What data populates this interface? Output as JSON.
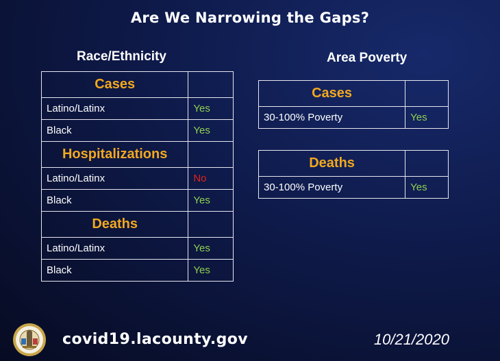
{
  "title": "Are We Narrowing the Gaps?",
  "race": {
    "heading": "Race/Ethnicity",
    "sections": [
      {
        "label": "Cases",
        "rows": [
          {
            "group": "Latino/Latinx",
            "answer": "Yes"
          },
          {
            "group": "Black",
            "answer": "Yes"
          }
        ]
      },
      {
        "label": "Hospitalizations",
        "rows": [
          {
            "group": "Latino/Latinx",
            "answer": "No"
          },
          {
            "group": "Black",
            "answer": "Yes"
          }
        ]
      },
      {
        "label": "Deaths",
        "rows": [
          {
            "group": "Latino/Latinx",
            "answer": "Yes"
          },
          {
            "group": "Black",
            "answer": "Yes"
          }
        ]
      }
    ]
  },
  "poverty": {
    "heading": "Area Poverty",
    "cases": {
      "label": "Cases",
      "group": "30-100% Poverty",
      "answer": "Yes"
    },
    "deaths": {
      "label": "Deaths",
      "group": "30-100% Poverty",
      "answer": "Yes"
    }
  },
  "footer": {
    "website": "covid19.lacounty.gov",
    "date": "10/21/2020",
    "seal_icon": "county-seal-icon"
  },
  "colors": {
    "section_label": "#f2a81f",
    "yes": "#8fd14f",
    "no": "#e2231a"
  }
}
